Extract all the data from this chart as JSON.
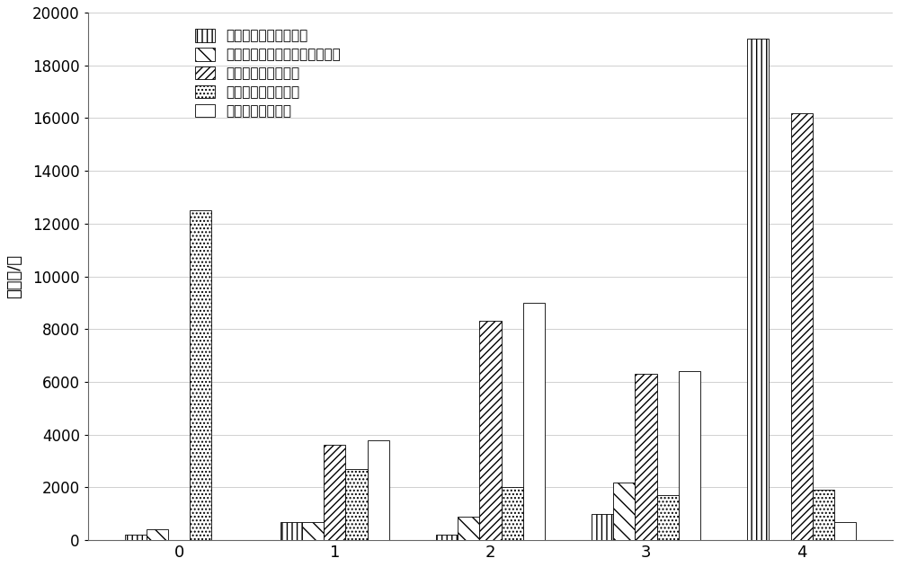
{
  "categories": [
    0,
    1,
    2,
    3,
    4
  ],
  "series_names": [
    "理论最优功率分配方式",
    "基于路径损耗部分补偿分配方式",
    "等功率发射分配方式",
    "等功率接受分配方式",
    "随机功率分配方式"
  ],
  "series_values": [
    [
      200,
      700,
      200,
      1000,
      19000
    ],
    [
      400,
      700,
      900,
      2200,
      0
    ],
    [
      0,
      3600,
      8300,
      6300,
      16200
    ],
    [
      12500,
      2700,
      2000,
      1700,
      1900
    ],
    [
      0,
      3800,
      9000,
      6400,
      700
    ]
  ],
  "hatches": [
    "|||",
    "\\\\",
    "////",
    "....",
    "==="
  ],
  "ylim": [
    0,
    20000
  ],
  "yticks": [
    0,
    2000,
    4000,
    6000,
    8000,
    10000,
    12000,
    14000,
    16000,
    18000,
    20000
  ],
  "ylabel": "样本数/个",
  "figsize": [
    10.0,
    6.31
  ],
  "dpi": 100,
  "bar_width": 0.14,
  "background_color": "#ffffff",
  "grid_color": "#d0d0d0",
  "edge_color": "#000000"
}
